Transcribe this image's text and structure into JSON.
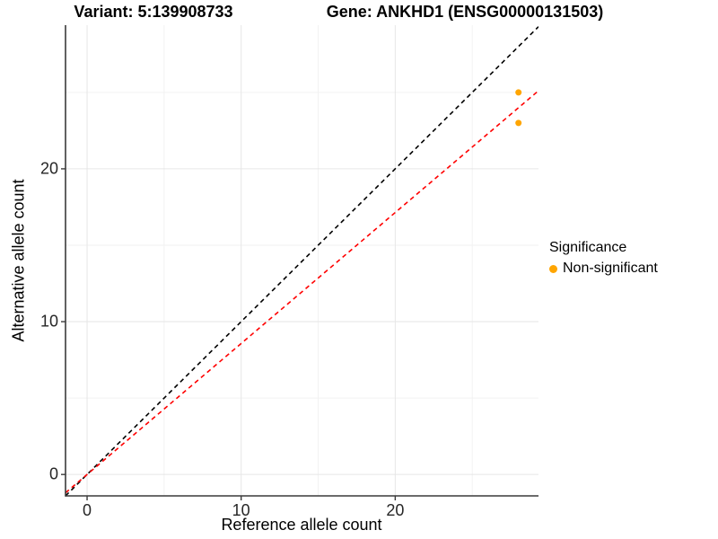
{
  "chart_data": {
    "type": "scatter",
    "titles": {
      "left": "Variant: 5:139908733",
      "right": "Gene: ANKHD1 (ENSG00000131503)"
    },
    "xlabel": "Reference allele count",
    "ylabel": "Alternative allele count",
    "xlim": [
      -1.4,
      29.3
    ],
    "ylim": [
      -1.4,
      29.4
    ],
    "x_major_ticks": [
      0,
      10,
      20
    ],
    "y_major_ticks": [
      0,
      10,
      20
    ],
    "x_minor_ticks": [
      5,
      15,
      25
    ],
    "y_minor_ticks": [
      5,
      15,
      25
    ],
    "grid": true,
    "points": [
      {
        "x": 28,
        "y": 25,
        "series": "Non-significant"
      },
      {
        "x": 28,
        "y": 23,
        "series": "Non-significant"
      }
    ],
    "point_color": "#FFA500",
    "point_radius": 3.5,
    "lines": [
      {
        "name": "identity-line",
        "slope": 1.0,
        "intercept": 0,
        "color": "#000000",
        "style": "dashed"
      },
      {
        "name": "regression-line",
        "slope": 0.857,
        "intercept": 0,
        "color": "#FF0000",
        "style": "dashed"
      }
    ],
    "legend": {
      "title": "Significance",
      "position": "right",
      "items": [
        {
          "label": "Non-significant",
          "color": "#FFA500"
        }
      ]
    },
    "colors": {
      "grid_major": "#E6E6E6",
      "grid_minor": "#F2F2F2",
      "axis_line": "#3A3A3A",
      "tick_text": "#262626",
      "background": "#FFFFFF"
    }
  }
}
